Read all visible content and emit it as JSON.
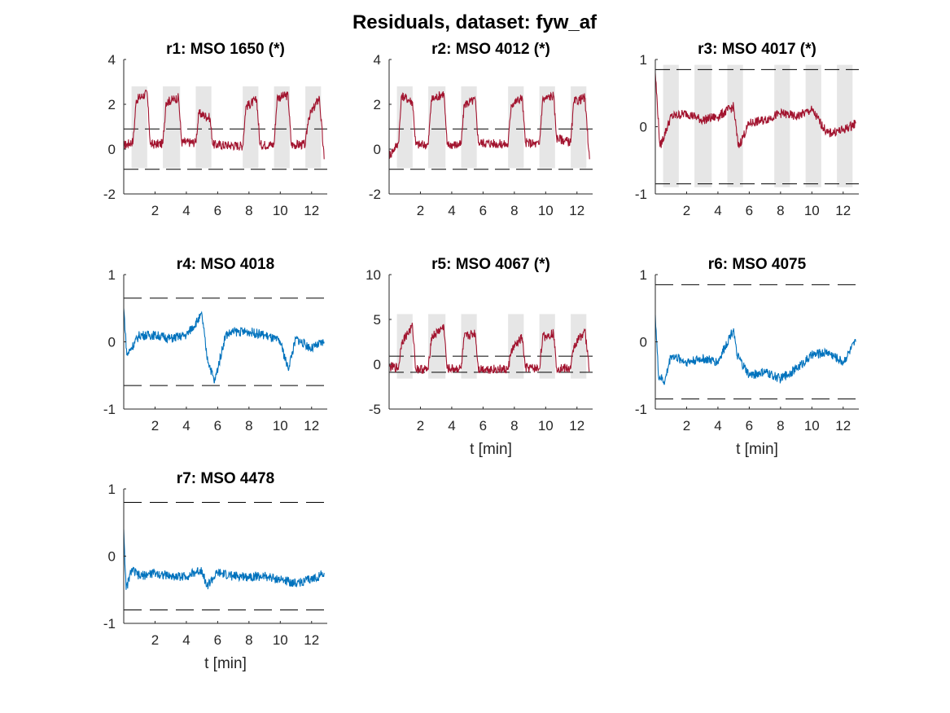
{
  "figure_title": "Residuals, dataset: fyw_af",
  "colors": {
    "fault": "#A2142F",
    "nofault": "#0072BD",
    "shade": "#E6E6E6",
    "threshold": "#000000",
    "axis": "#262626"
  },
  "chart_data": [
    {
      "type": "line",
      "title": "r1: MSO 1650 (*)",
      "xlabel": "",
      "ylabel": "",
      "xlim": [
        0,
        13
      ],
      "ylim": [
        -2,
        4
      ],
      "xticks": [
        2,
        4,
        6,
        8,
        10,
        12
      ],
      "yticks": [
        -2,
        0,
        2,
        4
      ],
      "color": "#A2142F",
      "threshold": 0.9,
      "shaded_intervals": [
        [
          0.5,
          1.5
        ],
        [
          2.5,
          3.6
        ],
        [
          4.6,
          5.6
        ],
        [
          7.6,
          8.6
        ],
        [
          9.6,
          10.6
        ],
        [
          11.6,
          12.6
        ]
      ],
      "interval_ylim": [
        -0.85,
        2.8
      ],
      "segments": [
        {
          "x": [
            0,
            0.6,
            0.8,
            1.5,
            1.7,
            2.5
          ],
          "y": [
            0.15,
            0.35,
            2.2,
            2.5,
            0.2,
            0.25
          ]
        },
        {
          "x": [
            2.5,
            2.7,
            3.5,
            3.7,
            4.6
          ],
          "y": [
            0.25,
            2.1,
            2.3,
            0.3,
            0.3
          ]
        },
        {
          "x": [
            4.6,
            4.8,
            5.5,
            5.7,
            7.6
          ],
          "y": [
            0.3,
            1.6,
            1.4,
            0.2,
            0.15
          ]
        },
        {
          "x": [
            7.6,
            7.8,
            8.5,
            8.7,
            9.6
          ],
          "y": [
            0.15,
            1.9,
            2.2,
            0.2,
            0.2
          ]
        },
        {
          "x": [
            9.6,
            9.8,
            10.5,
            10.7,
            11.6
          ],
          "y": [
            0.2,
            2.3,
            2.4,
            0.2,
            0.2
          ]
        },
        {
          "x": [
            11.6,
            11.8,
            12.5,
            12.8
          ],
          "y": [
            0.2,
            1.4,
            2.3,
            -0.45
          ]
        }
      ]
    },
    {
      "type": "line",
      "title": "r2: MSO 4012 (*)",
      "xlabel": "",
      "ylabel": "",
      "xlim": [
        0,
        13
      ],
      "ylim": [
        -2,
        4
      ],
      "xticks": [
        2,
        4,
        6,
        8,
        10,
        12
      ],
      "yticks": [
        -2,
        0,
        2,
        4
      ],
      "color": "#A2142F",
      "threshold": 0.9,
      "shaded_intervals": [
        [
          0.5,
          1.5
        ],
        [
          2.5,
          3.6
        ],
        [
          4.6,
          5.6
        ],
        [
          7.6,
          8.6
        ],
        [
          9.6,
          10.6
        ],
        [
          11.6,
          12.6
        ]
      ],
      "interval_ylim": [
        -0.85,
        2.8
      ],
      "segments": [
        {
          "x": [
            0,
            0.6,
            0.8,
            1.5,
            1.7,
            2.5
          ],
          "y": [
            -0.3,
            0.3,
            2.4,
            2.1,
            0.2,
            0.2
          ]
        },
        {
          "x": [
            2.5,
            2.7,
            3.5,
            3.7,
            4.6
          ],
          "y": [
            0.2,
            2.2,
            2.5,
            0.2,
            0.2
          ]
        },
        {
          "x": [
            4.6,
            4.8,
            5.5,
            5.7,
            7.6
          ],
          "y": [
            0.2,
            2.0,
            2.2,
            0.3,
            0.2
          ]
        },
        {
          "x": [
            7.6,
            7.8,
            8.5,
            8.7,
            9.6
          ],
          "y": [
            0.2,
            2.0,
            2.3,
            0.3,
            0.2
          ]
        },
        {
          "x": [
            9.6,
            9.8,
            10.5,
            10.7,
            11.6
          ],
          "y": [
            0.2,
            2.2,
            2.4,
            0.5,
            0.3
          ]
        },
        {
          "x": [
            11.6,
            11.8,
            12.5,
            12.8
          ],
          "y": [
            0.3,
            2.1,
            2.3,
            -0.45
          ]
        }
      ]
    },
    {
      "type": "line",
      "title": "r3: MSO 4017 (*)",
      "xlabel": "",
      "ylabel": "",
      "xlim": [
        0,
        13
      ],
      "ylim": [
        -1,
        1
      ],
      "xticks": [
        2,
        4,
        6,
        8,
        10,
        12
      ],
      "yticks": [
        -1,
        0,
        1
      ],
      "color": "#A2142F",
      "threshold": 0.85,
      "shaded_intervals": [
        [
          0.5,
          1.5
        ],
        [
          2.5,
          3.6
        ],
        [
          4.6,
          5.6
        ],
        [
          7.6,
          8.6
        ],
        [
          9.6,
          10.6
        ],
        [
          11.6,
          12.6
        ]
      ],
      "interval_ylim": [
        -0.9,
        0.92
      ],
      "segments": [
        {
          "x": [
            0,
            0.3,
            1,
            2,
            3,
            4,
            5,
            5.3,
            6,
            7,
            8,
            9,
            10,
            11,
            12,
            12.8
          ],
          "y": [
            0.8,
            -0.3,
            0.15,
            0.2,
            0.1,
            0.15,
            0.3,
            -0.3,
            0.05,
            0.1,
            0.2,
            0.15,
            0.25,
            -0.1,
            -0.05,
            0.05
          ]
        }
      ]
    },
    {
      "type": "line",
      "title": "r4: MSO 4018",
      "xlabel": "",
      "ylabel": "",
      "xlim": [
        0,
        13
      ],
      "ylim": [
        -1,
        1
      ],
      "xticks": [
        2,
        4,
        6,
        8,
        10,
        12
      ],
      "yticks": [
        -1,
        0,
        1
      ],
      "color": "#0072BD",
      "threshold": 0.65,
      "shaded_intervals": [],
      "interval_ylim": [
        0,
        0
      ],
      "segments": [
        {
          "x": [
            0,
            0.2,
            1,
            2,
            3,
            4,
            5,
            5.3,
            5.8,
            6.5,
            7,
            8,
            9,
            10,
            10.5,
            11,
            12,
            12.8
          ],
          "y": [
            0.5,
            -0.2,
            0.1,
            0.1,
            0.05,
            0.1,
            0.4,
            -0.2,
            -0.6,
            0.1,
            0.15,
            0.15,
            0.1,
            0.0,
            -0.4,
            0.05,
            -0.1,
            0.0
          ]
        }
      ]
    },
    {
      "type": "line",
      "title": "r5: MSO 4067 (*)",
      "xlabel": "t [min]",
      "ylabel": "",
      "xlim": [
        0,
        13
      ],
      "ylim": [
        -5,
        10
      ],
      "xticks": [
        2,
        4,
        6,
        8,
        10,
        12
      ],
      "yticks": [
        -5,
        0,
        5,
        10
      ],
      "color": "#A2142F",
      "threshold": 0.9,
      "shaded_intervals": [
        [
          0.5,
          1.5
        ],
        [
          2.5,
          3.6
        ],
        [
          4.6,
          5.6
        ],
        [
          7.6,
          8.6
        ],
        [
          9.6,
          10.6
        ],
        [
          11.6,
          12.6
        ]
      ],
      "interval_ylim": [
        -1.6,
        5.6
      ],
      "segments": [
        {
          "x": [
            0,
            0.6,
            0.8,
            1.5,
            1.7,
            2.5
          ],
          "y": [
            -0.3,
            -0.4,
            2.5,
            4.2,
            -0.5,
            -0.6
          ]
        },
        {
          "x": [
            2.5,
            2.7,
            3.5,
            3.7,
            4.6
          ],
          "y": [
            -0.6,
            3.0,
            4.2,
            -0.5,
            -0.5
          ]
        },
        {
          "x": [
            4.6,
            4.8,
            5.5,
            5.7,
            7.6
          ],
          "y": [
            -0.5,
            3.0,
            3.5,
            -0.5,
            -0.6
          ]
        },
        {
          "x": [
            7.6,
            7.8,
            8.5,
            8.7,
            9.6
          ],
          "y": [
            -0.6,
            1.5,
            3.0,
            -0.4,
            -0.5
          ]
        },
        {
          "x": [
            9.6,
            9.8,
            10.5,
            10.7,
            11.6
          ],
          "y": [
            -0.5,
            3.0,
            3.5,
            -0.4,
            -0.5
          ]
        },
        {
          "x": [
            11.6,
            11.8,
            12.5,
            12.8
          ],
          "y": [
            -0.5,
            2.0,
            3.8,
            -0.7
          ]
        }
      ]
    },
    {
      "type": "line",
      "title": "r6: MSO 4075",
      "xlabel": "t [min]",
      "ylabel": "",
      "xlim": [
        0,
        13
      ],
      "ylim": [
        -1,
        1
      ],
      "xticks": [
        2,
        4,
        6,
        8,
        10,
        12
      ],
      "yticks": [
        -1,
        0,
        1
      ],
      "color": "#0072BD",
      "threshold": 0.85,
      "shaded_intervals": [],
      "interval_ylim": [
        0,
        0
      ],
      "segments": [
        {
          "x": [
            0,
            0.2,
            0.6,
            1,
            2,
            3,
            4,
            5,
            5.2,
            6,
            7,
            8,
            9,
            10,
            11,
            12,
            12.8
          ],
          "y": [
            0.4,
            -0.5,
            -0.6,
            -0.2,
            -0.3,
            -0.25,
            -0.3,
            0.2,
            -0.2,
            -0.5,
            -0.45,
            -0.55,
            -0.4,
            -0.2,
            -0.15,
            -0.3,
            0.0
          ]
        }
      ]
    },
    {
      "type": "line",
      "title": "r7: MSO 4478",
      "xlabel": "t [min]",
      "ylabel": "",
      "xlim": [
        0,
        13
      ],
      "ylim": [
        -1,
        1
      ],
      "xticks": [
        2,
        4,
        6,
        8,
        10,
        12
      ],
      "yticks": [
        -1,
        0,
        1
      ],
      "color": "#0072BD",
      "threshold": 0.8,
      "shaded_intervals": [],
      "interval_ylim": [
        0,
        0
      ],
      "segments": [
        {
          "x": [
            0,
            0.15,
            0.5,
            1,
            2,
            3,
            4,
            5,
            5.3,
            6,
            7,
            8,
            9,
            10,
            11,
            12,
            12.8
          ],
          "y": [
            0.4,
            -0.5,
            -0.2,
            -0.3,
            -0.25,
            -0.3,
            -0.3,
            -0.2,
            -0.45,
            -0.25,
            -0.3,
            -0.3,
            -0.3,
            -0.35,
            -0.4,
            -0.35,
            -0.25
          ]
        }
      ]
    }
  ]
}
